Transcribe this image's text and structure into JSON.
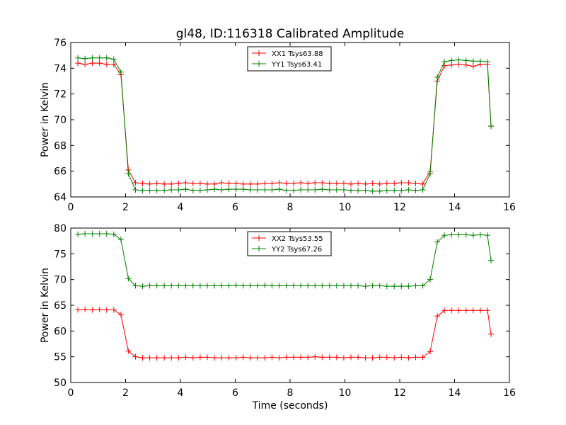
{
  "figure": {
    "title": "gl48, ID:116318 Calibrated Amplitude"
  },
  "chart_data": [
    {
      "type": "line",
      "title": "gl48, ID:116318 Calibrated Amplitude",
      "xlabel": "",
      "ylabel": "Power in Kelvin",
      "xlim": [
        0,
        16
      ],
      "ylim": [
        64,
        76
      ],
      "xticks": [
        0,
        2,
        4,
        6,
        8,
        10,
        12,
        14,
        16
      ],
      "yticks": [
        64,
        66,
        68,
        70,
        72,
        74,
        76
      ],
      "grid": false,
      "legend_position": "top-center",
      "x": [
        0.26,
        0.52,
        0.79,
        1.05,
        1.31,
        1.57,
        1.83,
        2.1,
        2.36,
        2.62,
        2.88,
        3.14,
        3.41,
        3.67,
        3.93,
        4.19,
        4.46,
        4.72,
        4.98,
        5.24,
        5.5,
        5.77,
        6.03,
        6.29,
        6.55,
        6.81,
        7.08,
        7.34,
        7.6,
        7.86,
        8.13,
        8.39,
        8.65,
        8.91,
        9.17,
        9.44,
        9.7,
        9.96,
        10.22,
        10.48,
        10.75,
        11.01,
        11.27,
        11.53,
        11.8,
        12.06,
        12.32,
        12.58,
        12.84,
        13.11,
        13.37,
        13.63,
        13.89,
        14.15,
        14.42,
        14.68,
        14.94,
        15.2,
        15.33
      ],
      "series": [
        {
          "name": "XX1 Tsys63.88",
          "color": "#ff0000",
          "values": [
            74.4,
            74.3,
            74.4,
            74.4,
            74.3,
            74.3,
            73.5,
            66.1,
            65.1,
            65.05,
            65.0,
            65.05,
            65.0,
            65.0,
            65.05,
            65.1,
            65.05,
            65.05,
            65.0,
            65.0,
            65.1,
            65.05,
            65.05,
            65.0,
            65.0,
            65.0,
            65.05,
            65.05,
            65.1,
            65.05,
            65.05,
            65.1,
            65.05,
            65.1,
            65.1,
            65.05,
            65.05,
            65.05,
            65.0,
            65.05,
            65.0,
            65.05,
            65.0,
            65.05,
            65.05,
            65.1,
            65.1,
            65.05,
            65.0,
            66.0,
            73.0,
            74.2,
            74.25,
            74.3,
            74.25,
            74.15,
            74.3,
            74.3,
            69.5
          ]
        },
        {
          "name": "YY1 Tsys63.41",
          "color": "#008000",
          "values": [
            74.8,
            74.75,
            74.8,
            74.8,
            74.8,
            74.7,
            73.7,
            65.8,
            64.55,
            64.5,
            64.5,
            64.5,
            64.5,
            64.55,
            64.55,
            64.6,
            64.5,
            64.5,
            64.55,
            64.6,
            64.55,
            64.6,
            64.6,
            64.6,
            64.55,
            64.55,
            64.55,
            64.55,
            64.6,
            64.5,
            64.5,
            64.55,
            64.55,
            64.55,
            64.6,
            64.55,
            64.55,
            64.55,
            64.5,
            64.5,
            64.5,
            64.45,
            64.45,
            64.5,
            64.5,
            64.5,
            64.55,
            64.5,
            64.55,
            65.8,
            73.3,
            74.5,
            74.6,
            74.65,
            74.6,
            74.55,
            74.55,
            74.5,
            69.5
          ]
        }
      ]
    },
    {
      "type": "line",
      "title": "",
      "xlabel": "Time (seconds)",
      "ylabel": "Power in Kelvin",
      "xlim": [
        0,
        16
      ],
      "ylim": [
        50,
        80
      ],
      "xticks": [
        0,
        2,
        4,
        6,
        8,
        10,
        12,
        14,
        16
      ],
      "yticks": [
        50,
        55,
        60,
        65,
        70,
        75,
        80
      ],
      "grid": false,
      "legend_position": "top-center",
      "x": [
        0.26,
        0.52,
        0.79,
        1.05,
        1.31,
        1.57,
        1.83,
        2.1,
        2.36,
        2.62,
        2.88,
        3.14,
        3.41,
        3.67,
        3.93,
        4.19,
        4.46,
        4.72,
        4.98,
        5.24,
        5.5,
        5.77,
        6.03,
        6.29,
        6.55,
        6.81,
        7.08,
        7.34,
        7.6,
        7.86,
        8.13,
        8.39,
        8.65,
        8.91,
        9.17,
        9.44,
        9.7,
        9.96,
        10.22,
        10.48,
        10.75,
        11.01,
        11.27,
        11.53,
        11.8,
        12.06,
        12.32,
        12.58,
        12.84,
        13.11,
        13.37,
        13.63,
        13.89,
        14.15,
        14.42,
        14.68,
        14.94,
        15.2,
        15.33
      ],
      "series": [
        {
          "name": "XX2 Tsys53.55",
          "color": "#ff0000",
          "values": [
            64.1,
            64.2,
            64.1,
            64.2,
            64.1,
            64.1,
            63.2,
            56.1,
            55.0,
            54.8,
            54.8,
            54.8,
            54.8,
            54.8,
            54.8,
            54.9,
            54.8,
            54.9,
            54.9,
            54.8,
            54.8,
            54.8,
            54.8,
            54.9,
            54.8,
            54.8,
            54.8,
            54.9,
            54.8,
            54.9,
            54.9,
            54.9,
            54.9,
            55.0,
            54.9,
            54.9,
            54.9,
            54.8,
            54.9,
            54.9,
            54.8,
            54.8,
            54.9,
            54.9,
            54.8,
            54.9,
            54.8,
            54.9,
            54.9,
            56.0,
            62.9,
            64.0,
            64.0,
            64.0,
            64.0,
            64.0,
            64.0,
            64.0,
            59.4
          ]
        },
        {
          "name": "YY2 Tsys67.26",
          "color": "#008000",
          "values": [
            78.8,
            78.9,
            78.9,
            78.9,
            78.9,
            78.8,
            77.8,
            70.2,
            68.8,
            68.7,
            68.8,
            68.8,
            68.8,
            68.8,
            68.8,
            68.8,
            68.8,
            68.8,
            68.8,
            68.8,
            68.8,
            68.8,
            68.9,
            68.8,
            68.8,
            68.8,
            68.9,
            68.8,
            68.8,
            68.8,
            68.8,
            68.8,
            68.8,
            68.8,
            68.8,
            68.8,
            68.8,
            68.8,
            68.8,
            68.8,
            68.7,
            68.8,
            68.8,
            68.7,
            68.7,
            68.7,
            68.7,
            68.8,
            68.8,
            70.0,
            77.3,
            78.6,
            78.7,
            78.7,
            78.7,
            78.6,
            78.7,
            78.6,
            73.7
          ]
        }
      ]
    }
  ]
}
